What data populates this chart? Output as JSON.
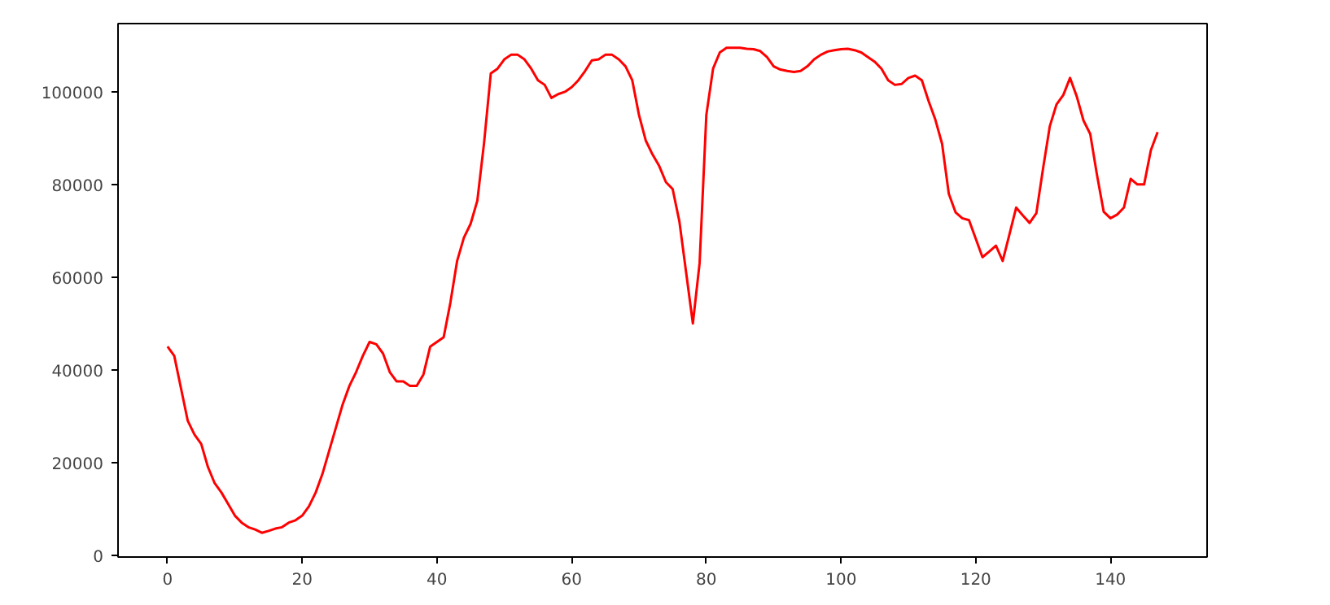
{
  "chart_data": {
    "type": "line",
    "x": [
      0,
      1,
      2,
      3,
      4,
      5,
      6,
      7,
      8,
      9,
      10,
      11,
      12,
      13,
      14,
      15,
      16,
      17,
      18,
      19,
      20,
      21,
      22,
      23,
      24,
      25,
      26,
      27,
      28,
      29,
      30,
      31,
      32,
      33,
      34,
      35,
      36,
      37,
      38,
      39,
      40,
      41,
      42,
      43,
      44,
      45,
      46,
      47,
      48,
      49,
      50,
      51,
      52,
      53,
      54,
      55,
      56,
      57,
      58,
      59,
      60,
      61,
      62,
      63,
      64,
      65,
      66,
      67,
      68,
      69,
      70,
      71,
      72,
      73,
      74,
      75,
      76,
      77,
      78,
      79,
      80,
      81,
      82,
      83,
      84,
      85,
      86,
      87,
      88,
      89,
      90,
      91,
      92,
      93,
      94,
      95,
      96,
      97,
      98,
      99,
      100,
      101,
      102,
      103,
      104,
      105,
      106,
      107,
      108,
      109,
      110,
      111,
      112,
      113,
      114,
      115,
      116,
      117,
      118,
      119,
      120,
      121,
      122,
      123,
      124,
      125,
      126,
      127,
      128,
      129,
      130,
      131,
      132,
      133,
      134,
      135,
      136,
      137,
      138,
      139,
      140,
      141,
      142,
      143,
      144,
      145,
      146,
      147
    ],
    "series": [
      {
        "color": "#ff0000",
        "values": [
          45000,
          43000,
          36000,
          29000,
          26000,
          24000,
          19000,
          15500,
          13500,
          11000,
          8500,
          7000,
          6000,
          5500,
          4800,
          5200,
          5700,
          6000,
          7000,
          7500,
          8500,
          10500,
          13500,
          17500,
          22500,
          27500,
          32500,
          36500,
          39500,
          43000,
          46000,
          45500,
          43500,
          39500,
          37500,
          37500,
          36500,
          36500,
          39000,
          45000,
          46000,
          47000,
          54500,
          63500,
          68500,
          71500,
          76500,
          89000,
          104000,
          105000,
          107000,
          108000,
          108000,
          107000,
          105000,
          102500,
          101500,
          98700,
          99500,
          100000,
          101000,
          102500,
          104500,
          106800,
          107000,
          108000,
          108000,
          107000,
          105500,
          102500,
          95000,
          89500,
          86500,
          84000,
          80500,
          79000,
          72000,
          61000,
          50000,
          63000,
          95000,
          105000,
          108500,
          109500,
          109500,
          109500,
          109300,
          109200,
          108800,
          107500,
          105500,
          104800,
          104500,
          104300,
          104500,
          105500,
          107000,
          108000,
          108700,
          109000,
          109200,
          109300,
          109000,
          108500,
          107500,
          106500,
          105000,
          102500,
          101500,
          101700,
          103000,
          103500,
          102500,
          98000,
          94000,
          88800,
          78000,
          74000,
          72700,
          72300,
          68300,
          64300,
          65500,
          66800,
          63500,
          69200,
          75000,
          73300,
          71700,
          73800,
          83500,
          92600,
          97300,
          99300,
          103000,
          99000,
          93800,
          90900,
          82100,
          74100,
          72700,
          73500,
          75000,
          81200,
          80000,
          80000,
          87400,
          91300
        ]
      }
    ],
    "xlim": [
      -7.35,
      154.35
    ],
    "ylim": [
      -435,
      114735
    ],
    "xticks": [
      0,
      20,
      40,
      60,
      80,
      100,
      120,
      140
    ],
    "yticks": [
      0,
      20000,
      40000,
      60000,
      80000,
      100000
    ],
    "grid": false,
    "line_style": "solid"
  }
}
